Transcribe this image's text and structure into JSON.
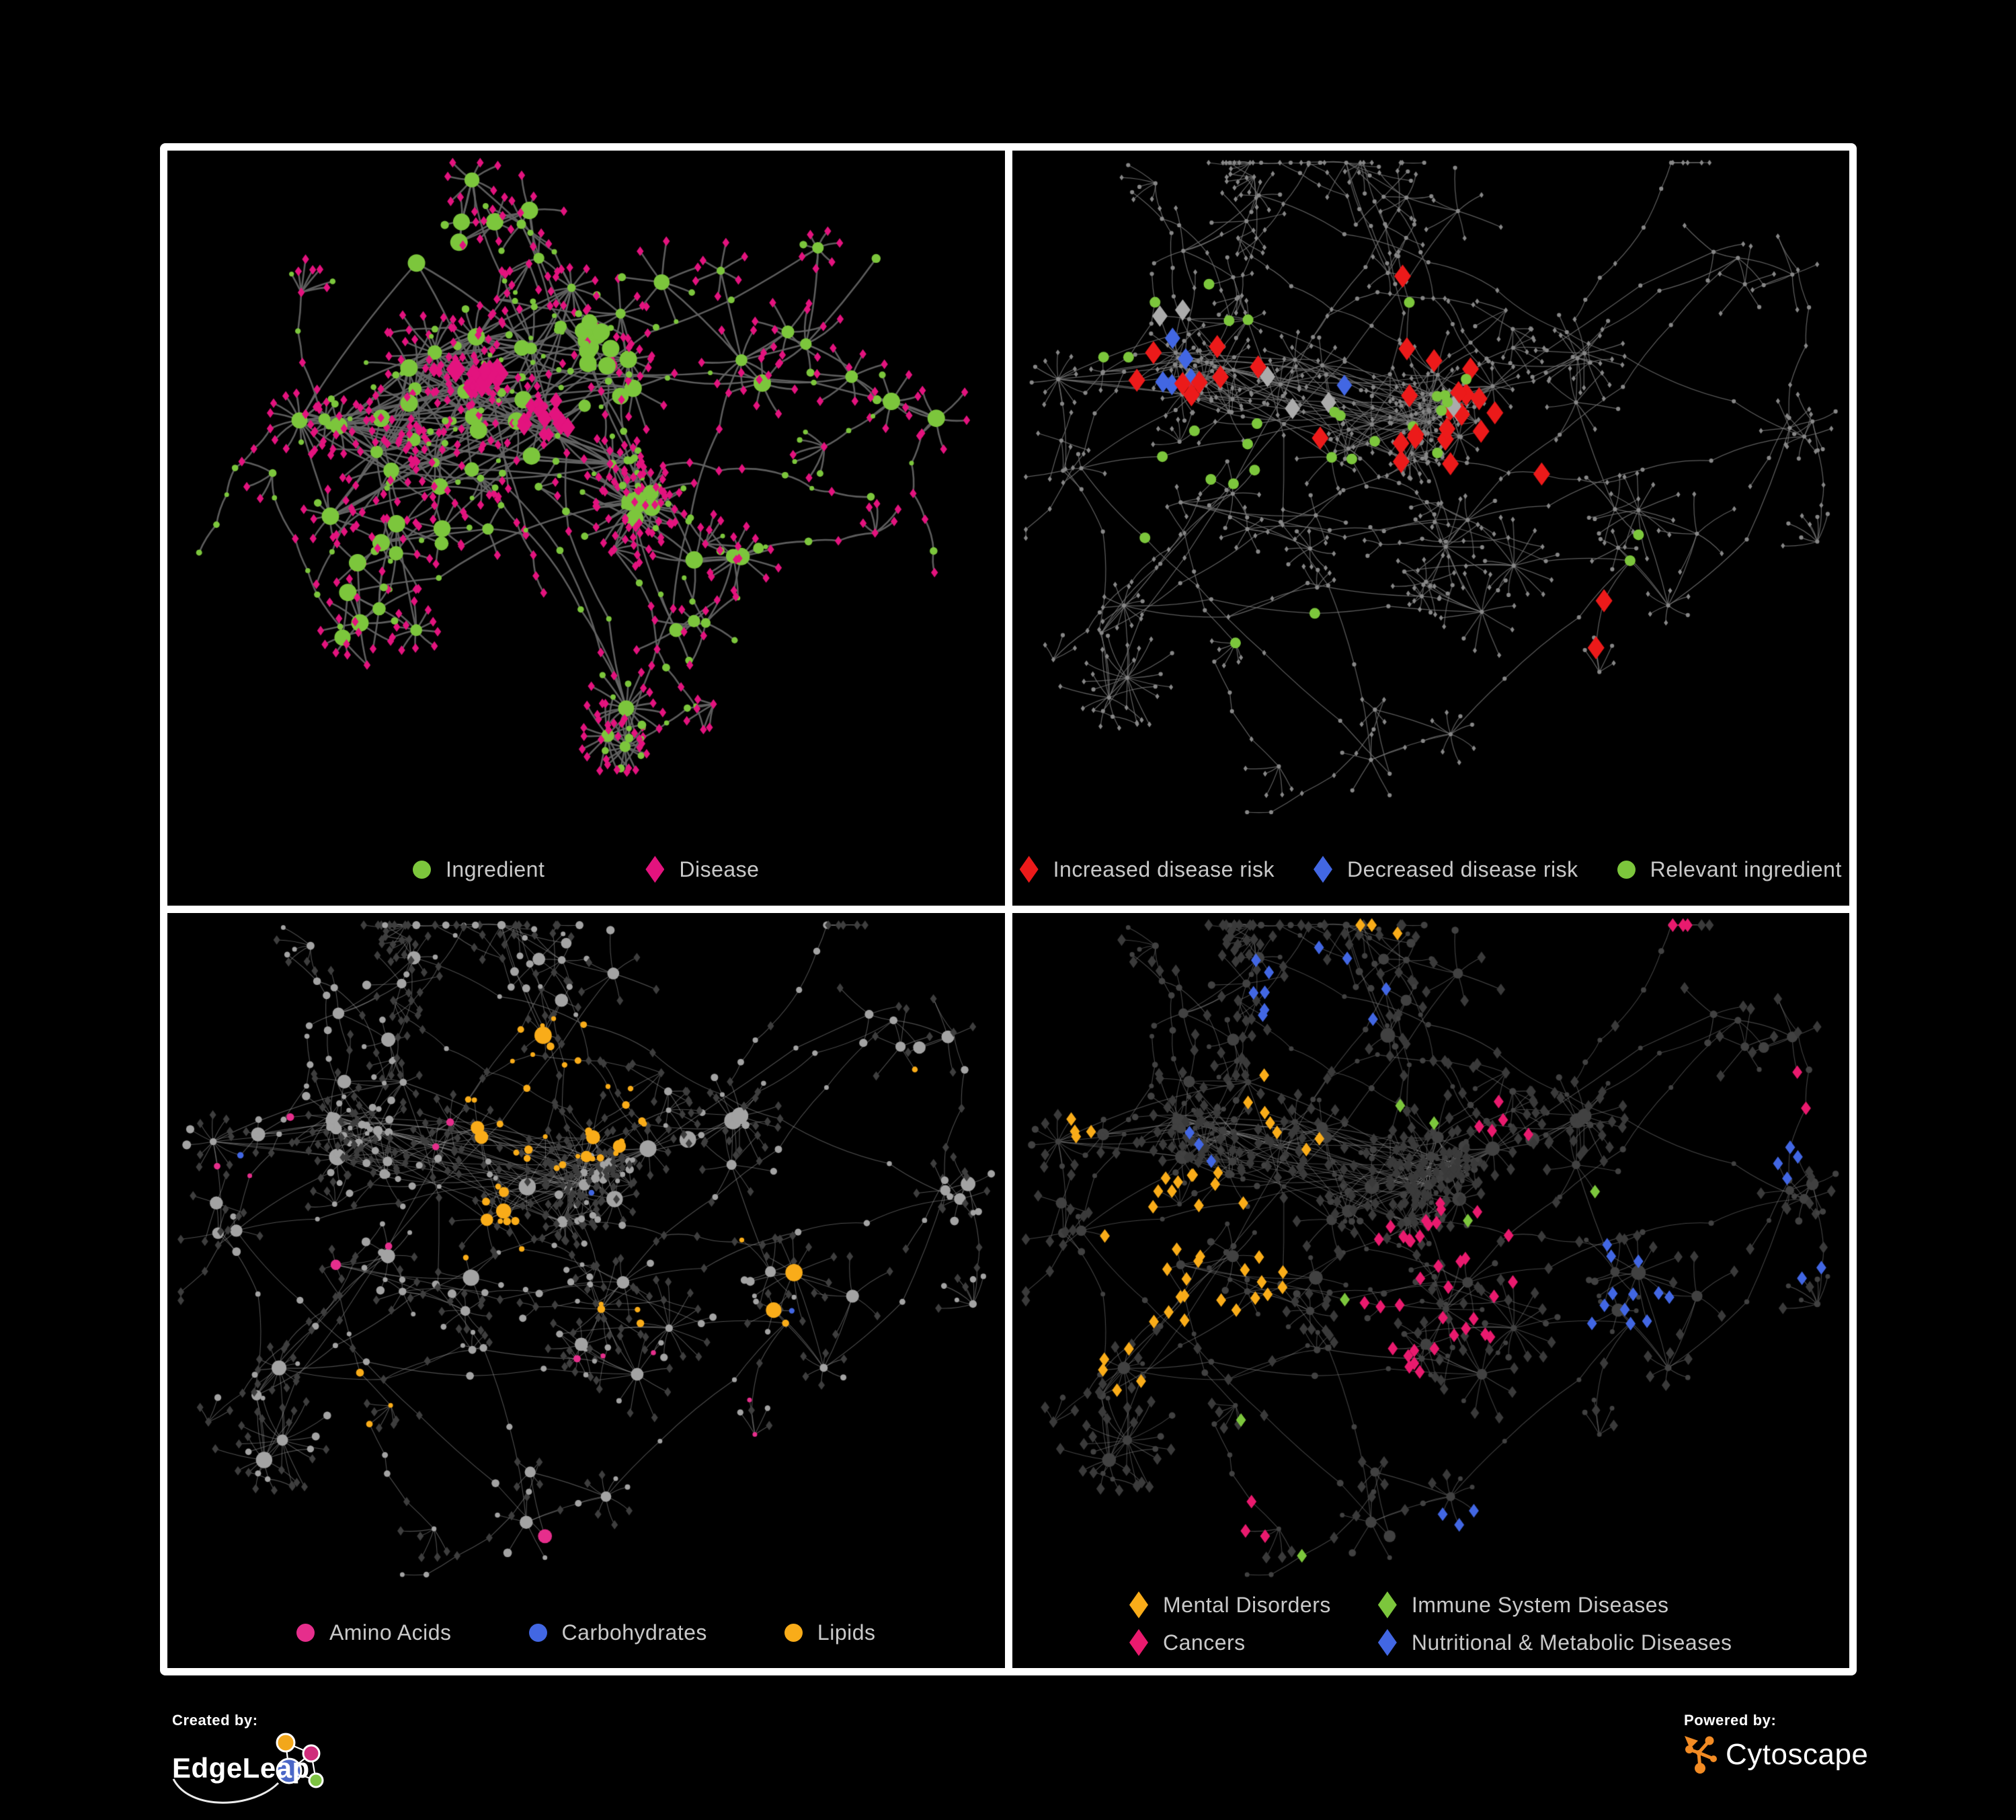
{
  "page": {
    "background": "#000000",
    "frame_color": "#ffffff"
  },
  "panels": [
    {
      "id": "ingredient-disease",
      "network": {
        "type": "node-link-graph",
        "edge_color": "#656565",
        "colors": {
          "ingredient": "#7cc63c",
          "disease": "#e3137e"
        },
        "shapes": {
          "circle": "Ingredient",
          "diamond": "Disease"
        }
      },
      "legend_rows": [
        [
          {
            "label": "Ingredient",
            "shape": "circle",
            "color": "#7cc63c"
          },
          {
            "label": "Disease",
            "shape": "diamond",
            "color": "#e3137e"
          }
        ]
      ]
    },
    {
      "id": "disease-risk",
      "network": {
        "type": "node-link-graph",
        "edge_color": "#747474",
        "base_node_color": "#878787",
        "colors": {
          "increased": "#ec1a1a",
          "decreased": "#4267e3",
          "neutral": "#ababab",
          "ingredient": "#7cc63c"
        }
      },
      "legend_rows": [
        [
          {
            "label": "Increased disease risk",
            "shape": "diamond",
            "color": "#ec1a1a"
          },
          {
            "label": "Decreased disease risk",
            "shape": "diamond",
            "color": "#4267e3"
          },
          {
            "label": "Relevant ingredient",
            "shape": "circle",
            "color": "#7cc63c"
          }
        ]
      ]
    },
    {
      "id": "macronutrients",
      "network": {
        "type": "node-link-graph",
        "edge_color": "#9c9c9c",
        "base_circle_color": "#a3a3a3",
        "base_diamond_color": "#3e3e3e",
        "colors": {
          "amino_acids": "#e62e8c",
          "carbohydrates": "#4267e3",
          "lipids": "#f9ac19"
        }
      },
      "legend_rows": [
        [
          {
            "label": "Amino Acids",
            "shape": "circle",
            "color": "#e62e8c"
          },
          {
            "label": "Carbohydrates",
            "shape": "circle",
            "color": "#4267e3"
          },
          {
            "label": "Lipids",
            "shape": "circle",
            "color": "#f9ac19"
          }
        ]
      ]
    },
    {
      "id": "disease-categories",
      "network": {
        "type": "node-link-graph",
        "edge_color": "#8c8c8c",
        "base_circle_color": "#414141",
        "base_diamond_color": "#3a3a3a",
        "colors": {
          "mental_disorders": "#f9ac19",
          "immune_system_diseases": "#7cc63c",
          "cancers": "#e91a6e",
          "nutritional_metabolic_diseases": "#4267e3"
        }
      },
      "legend_rows": [
        [
          {
            "label": "Mental Disorders",
            "shape": "diamond",
            "color": "#f9ac19"
          },
          {
            "label": "Immune System Diseases",
            "shape": "diamond",
            "color": "#7cc63c"
          }
        ],
        [
          {
            "label": "Cancers",
            "shape": "diamond",
            "color": "#e91a6e"
          },
          {
            "label": "Nutritional & Metabolic Diseases",
            "shape": "diamond",
            "color": "#4267e3"
          }
        ]
      ]
    }
  ],
  "footer": {
    "created_by_label": "Created by:",
    "created_by_brand": "EdgeLeap",
    "powered_by_label": "Powered by:",
    "powered_by_brand": "Cytoscape",
    "edgeleap_logo_colors": {
      "orange": "#f2a71b",
      "pink": "#cf2d7b",
      "blue": "#4a67c7",
      "green": "#7dc242"
    },
    "cytoscape_logo_color": "#f28b24"
  }
}
